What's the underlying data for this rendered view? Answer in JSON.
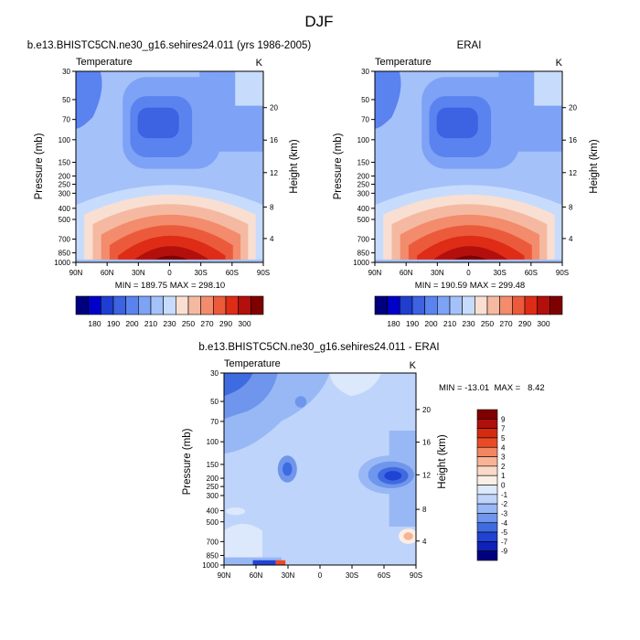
{
  "page": {
    "title": "DJF"
  },
  "colors": {
    "scale_top": [
      "#00007f",
      "#0000c8",
      "#1f3ecf",
      "#3d62e2",
      "#5a83ef",
      "#7ea2f5",
      "#a4c1fa",
      "#c7dcfc",
      "#f9dfd2",
      "#f5b9a1",
      "#f28c6c",
      "#ec5a3c",
      "#de2c16",
      "#b30f0c",
      "#7f0000"
    ],
    "scale_diff": [
      "#7f0000",
      "#b0100b",
      "#d42b10",
      "#ea4b26",
      "#f28660",
      "#f7b394",
      "#fbd9c7",
      "#fbeee4",
      "#dce8fb",
      "#bfd4fa",
      "#98b8f5",
      "#6f96ec",
      "#3f6be0",
      "#2143d3",
      "#0f22b8",
      "#00007f"
    ]
  },
  "chart_data": [
    {
      "type": "contour",
      "title": "b.e13.BHISTC5CN.ne30_g16.sehires24.011 (yrs 1986-2005)",
      "left_label": "Temperature",
      "right_label": "K",
      "ylabel": "Pressure (mb)",
      "ylabel_right": "Height (km)",
      "x_ticks": [
        "90N",
        "60N",
        "30N",
        "0",
        "30S",
        "60S",
        "90S"
      ],
      "y_ticks": [
        "30",
        "50",
        "70",
        "100",
        "150",
        "200",
        "250",
        "300",
        "400",
        "500",
        "700",
        "850",
        "1000"
      ],
      "y_right_ticks": [
        "20",
        "16",
        "12",
        "8",
        "4"
      ],
      "stats": "MIN = 189.75  MAX = 298.10",
      "colorbar_labels": [
        "180",
        "190",
        "200",
        "210",
        "230",
        "250",
        "270",
        "290",
        "300"
      ],
      "min": 189.75,
      "max": 298.1
    },
    {
      "type": "contour",
      "title": "ERAI",
      "left_label": "Temperature",
      "right_label": "K",
      "ylabel": "Pressure (mb)",
      "ylabel_right": "Height (km)",
      "x_ticks": [
        "90N",
        "60N",
        "30N",
        "0",
        "30S",
        "60S",
        "90S"
      ],
      "y_ticks": [
        "30",
        "50",
        "70",
        "100",
        "150",
        "200",
        "250",
        "300",
        "400",
        "500",
        "700",
        "850",
        "1000"
      ],
      "y_right_ticks": [
        "20",
        "16",
        "12",
        "8",
        "4"
      ],
      "stats": "MIN = 190.59  MAX = 299.48",
      "colorbar_labels": [
        "180",
        "190",
        "200",
        "210",
        "230",
        "250",
        "270",
        "290",
        "300"
      ],
      "min": 190.59,
      "max": 299.48
    },
    {
      "type": "contour",
      "title": "b.e13.BHISTC5CN.ne30_g16.sehires24.011 - ERAI",
      "left_label": "Temperature",
      "right_label": "K",
      "ylabel": "Pressure (mb)",
      "ylabel_right": "Height (km)",
      "x_ticks": [
        "90N",
        "60N",
        "30N",
        "0",
        "30S",
        "60S",
        "90S"
      ],
      "y_ticks": [
        "30",
        "50",
        "70",
        "100",
        "150",
        "200",
        "250",
        "300",
        "400",
        "500",
        "700",
        "850",
        "1000"
      ],
      "y_right_ticks": [
        "20",
        "16",
        "12",
        "8",
        "4"
      ],
      "stats": "MIN = -13.01  MAX =   8.42",
      "colorbar_labels": [
        "9",
        "7",
        "5",
        "4",
        "3",
        "2",
        "1",
        "0",
        "-1",
        "-2",
        "-3",
        "-4",
        "-5",
        "-7",
        "-9"
      ],
      "min": -13.01,
      "max": 8.42
    }
  ]
}
